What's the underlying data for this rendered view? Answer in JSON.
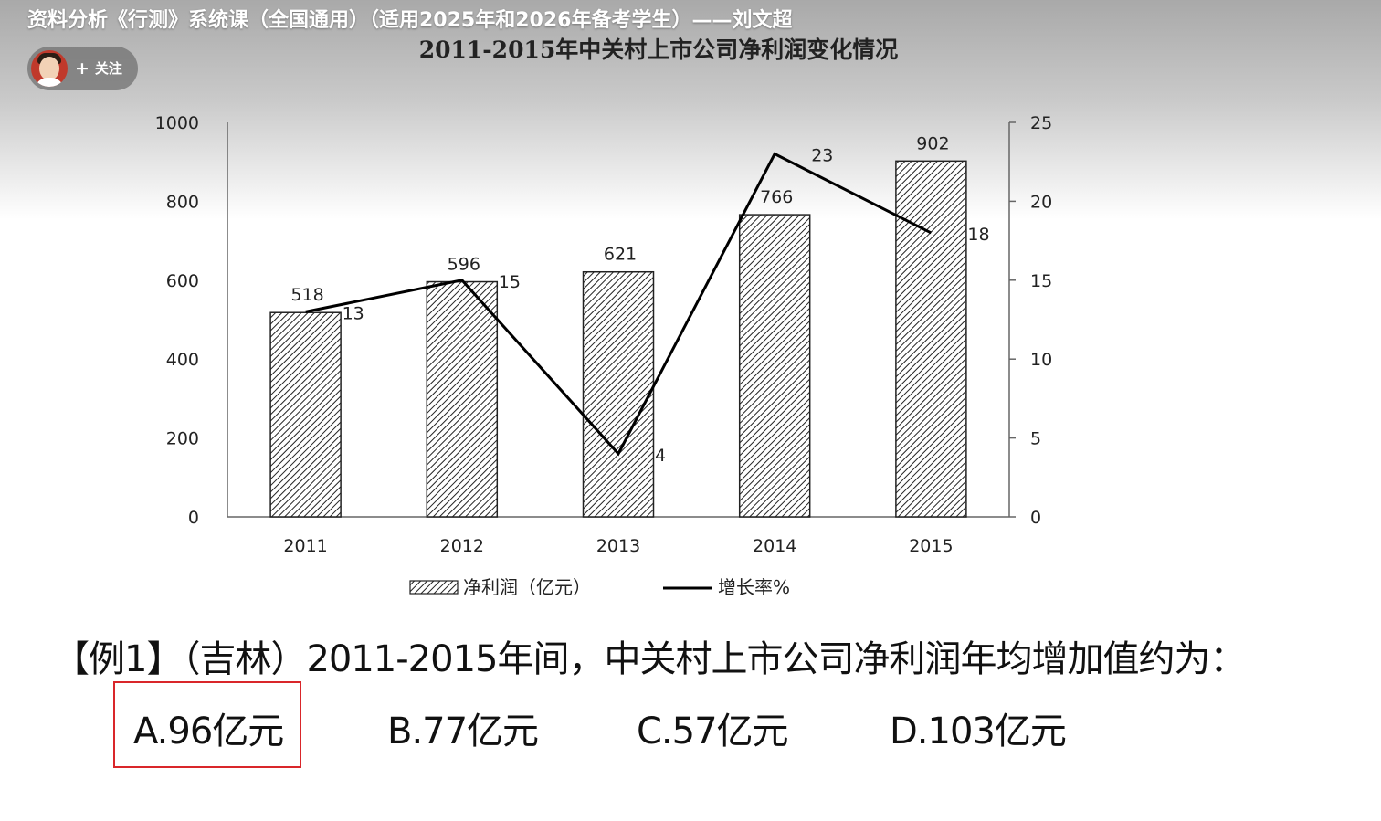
{
  "video": {
    "title": "资料分析《行测》系统课（全国通用）（适用2025年和2026年备考学生）——刘文超",
    "follow_label": "关注",
    "follow_plus": "+"
  },
  "chart_data": {
    "type": "bar",
    "title": "2011-2015年中关村上市公司净利润变化情况",
    "categories": [
      "2011",
      "2012",
      "2013",
      "2014",
      "2015"
    ],
    "series": [
      {
        "name": "净利润（亿元）",
        "kind": "bar",
        "axis": "left",
        "values": [
          518,
          596,
          621,
          766,
          902
        ]
      },
      {
        "name": "增长率%",
        "kind": "line",
        "axis": "right",
        "values": [
          13,
          15,
          4,
          23,
          18
        ]
      }
    ],
    "ylim": [
      0,
      1000
    ],
    "yticks": [
      0,
      200,
      400,
      600,
      800,
      1000
    ],
    "y2lim": [
      0,
      25
    ],
    "y2ticks": [
      0,
      5,
      10,
      15,
      20,
      25
    ],
    "grid": false,
    "legend": "bottom",
    "bar_fill": "diagonal-hatch",
    "line_color": "#000000"
  },
  "question": {
    "text": "【例1】（吉林）2011-2015年间，中关村上市公司净利润年均增加值约为：",
    "options": [
      {
        "key": "A",
        "label": "A.96亿元",
        "selected": true
      },
      {
        "key": "B",
        "label": "B.77亿元",
        "selected": false
      },
      {
        "key": "C",
        "label": "C.57亿元",
        "selected": false
      },
      {
        "key": "D",
        "label": "D.103亿元",
        "selected": false
      }
    ],
    "highlight_color": "#d9262a"
  }
}
